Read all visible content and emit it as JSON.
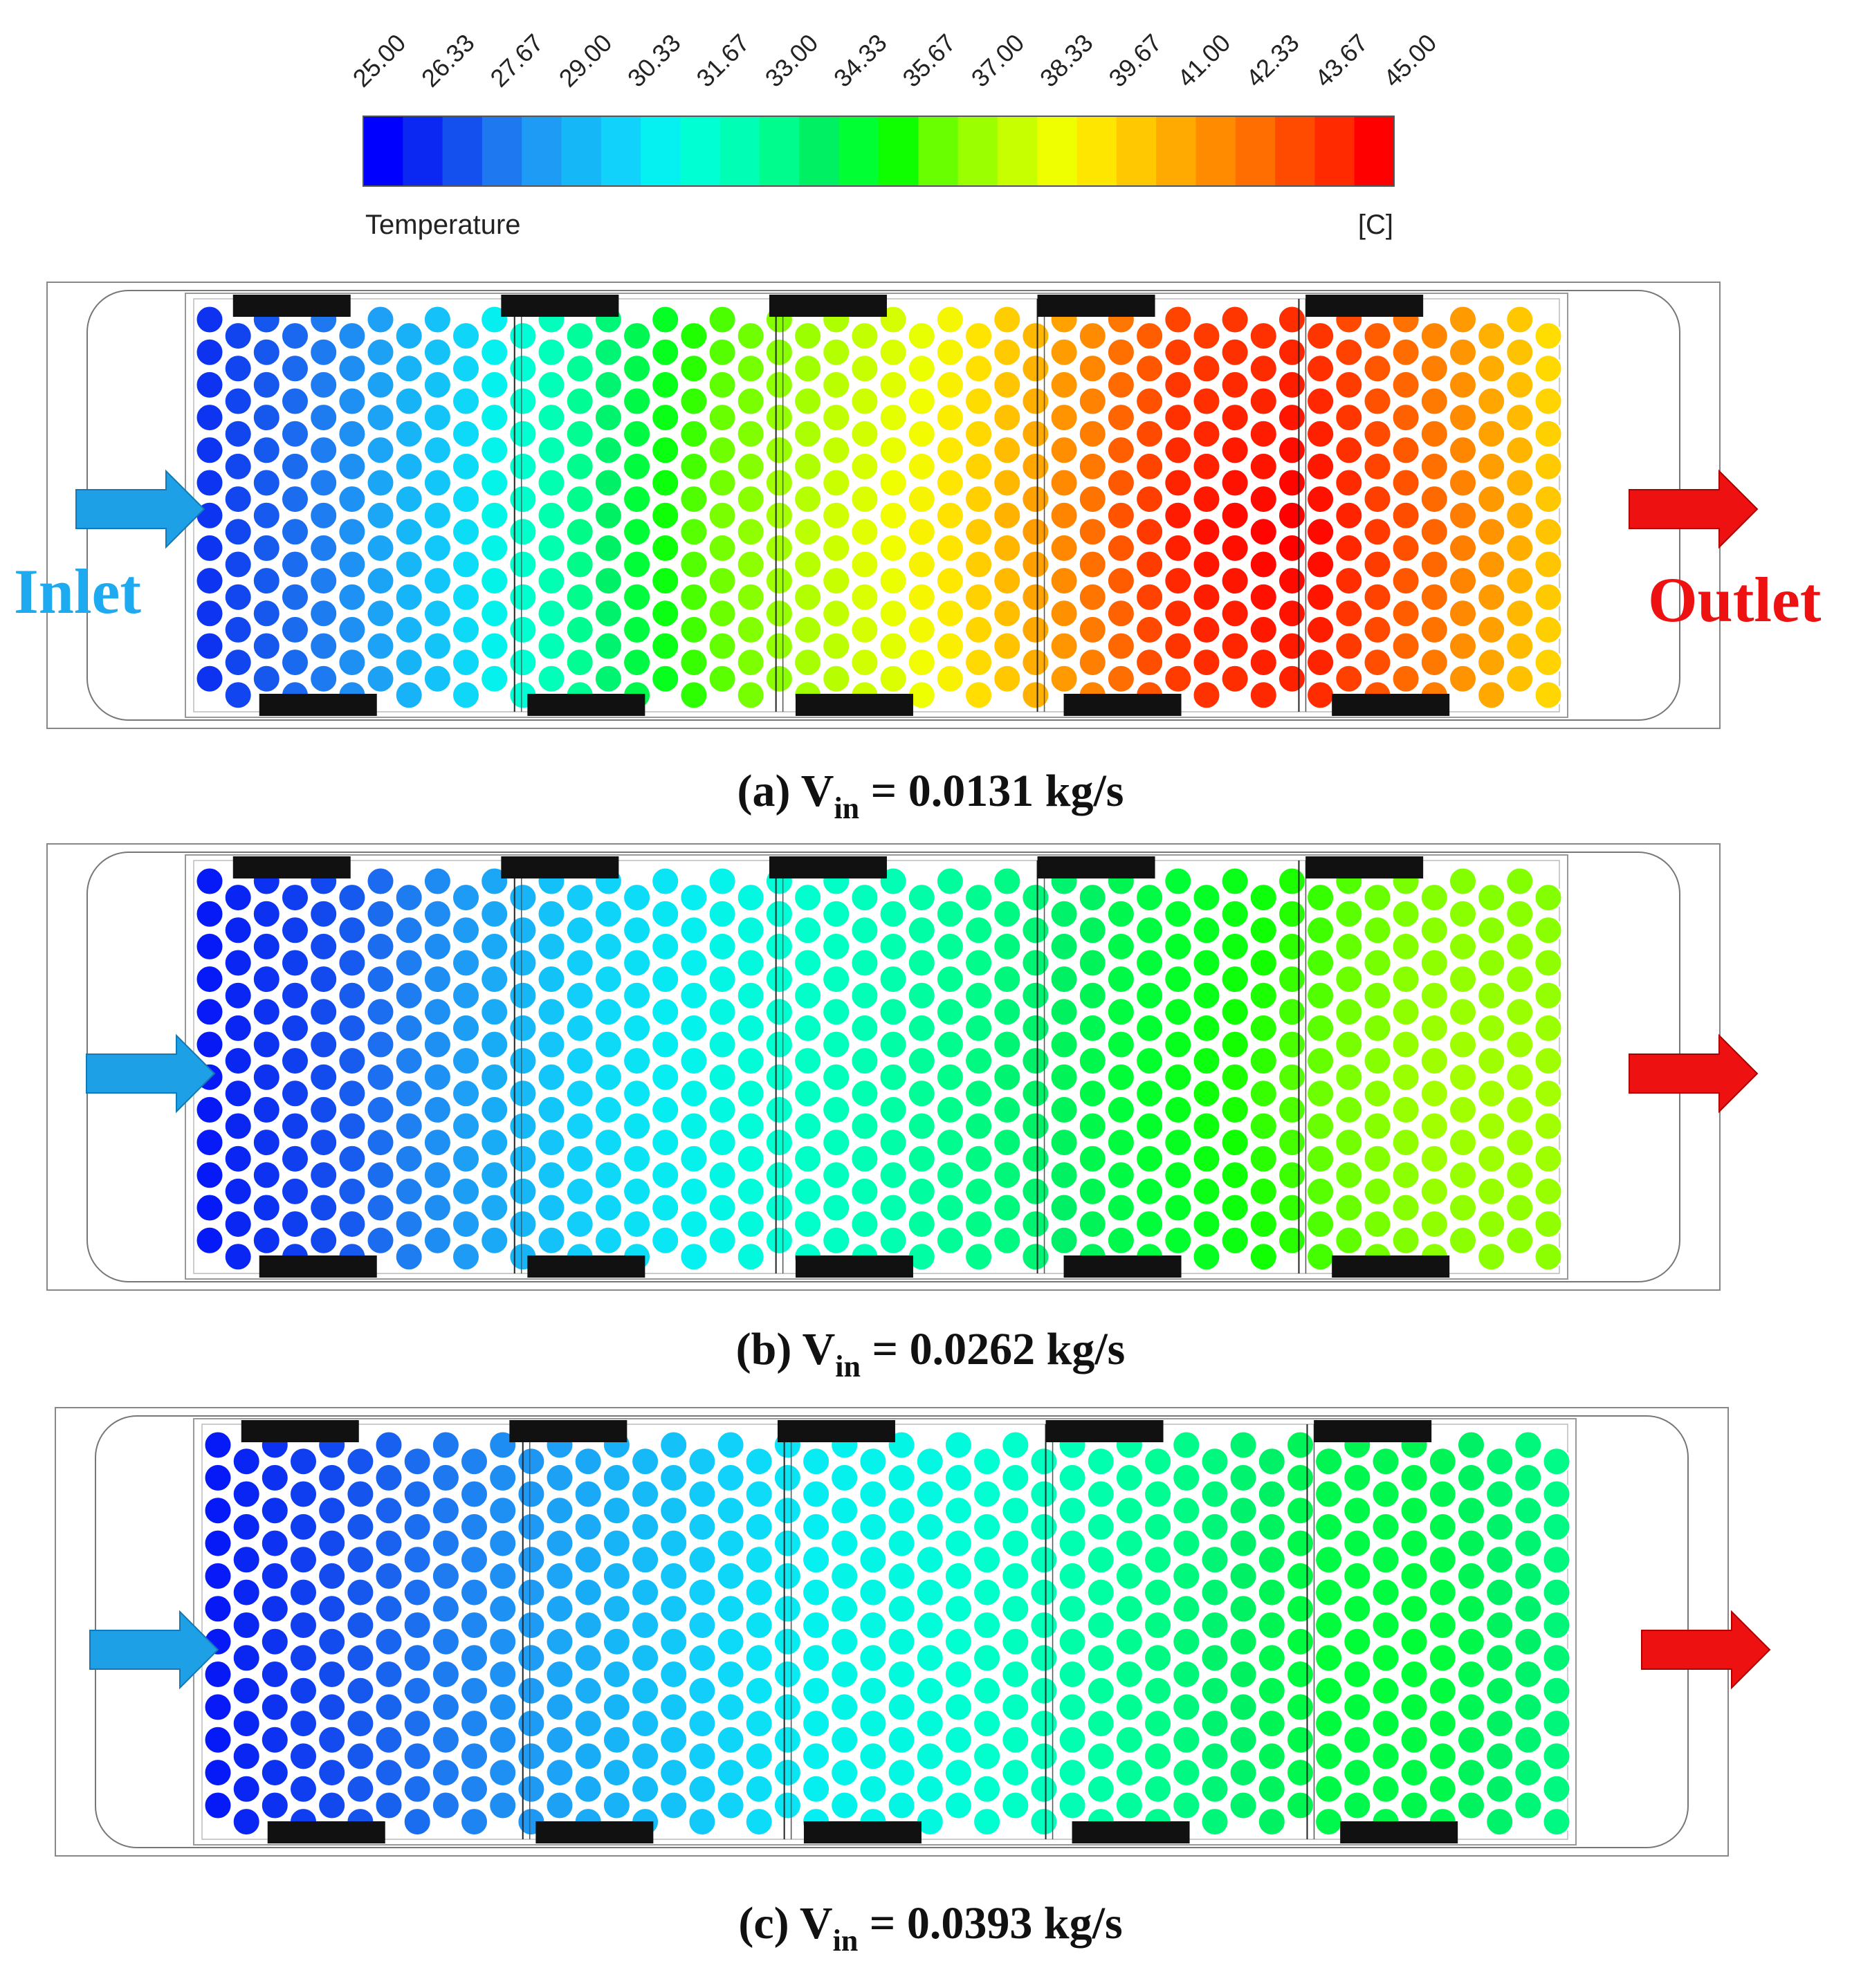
{
  "colorbar": {
    "title": "Temperature",
    "unit": "[C]",
    "ticks": [
      "25.00",
      "26.33",
      "27.67",
      "29.00",
      "30.33",
      "31.67",
      "33.00",
      "34.33",
      "35.67",
      "37.00",
      "38.33",
      "39.67",
      "41.00",
      "42.33",
      "43.67",
      "45.00"
    ],
    "min": 25.0,
    "max": 45.0,
    "colors": [
      "#0000ff",
      "#0a28f2",
      "#1450ee",
      "#1e78f0",
      "#1e9bf5",
      "#16b7f7",
      "#10d2fa",
      "#05f0f0",
      "#00ffd2",
      "#00ffb4",
      "#00fc8c",
      "#00f064",
      "#00ff33",
      "#10ff00",
      "#6aff00",
      "#9bff00",
      "#c8ff00",
      "#f0ff00",
      "#ffe600",
      "#ffc800",
      "#ffaa00",
      "#ff8c00",
      "#ff6e00",
      "#ff4b00",
      "#ff2a00",
      "#ff0000"
    ]
  },
  "labels": {
    "inlet": "Inlet",
    "outlet": "Outlet"
  },
  "colors": {
    "inlet_arrow": "#1ea0e6",
    "outlet_arrow": "#ee1111",
    "inlet_text": "#1eaaf0",
    "outlet_text": "#ee1111",
    "separator": "#111111"
  },
  "panels": [
    {
      "caption_prefix": "(a) V",
      "caption_sub": "in",
      "caption_suffix": " = 0.0131 kg/s",
      "temps_left_to_right": [
        26.0,
        27.5,
        29.5,
        32.5,
        35.5,
        37.0,
        38.5,
        41.0,
        43.5,
        44.0,
        42.0,
        39.5
      ]
    },
    {
      "caption_prefix": "(b) V",
      "caption_sub": "in",
      "caption_suffix": " = 0.0262 kg/s",
      "temps_left_to_right": [
        25.5,
        26.5,
        28.0,
        29.5,
        30.5,
        31.5,
        32.5,
        33.5,
        34.5,
        35.5,
        36.5,
        36.5
      ]
    },
    {
      "caption_prefix": "(c) V",
      "caption_sub": "in",
      "caption_suffix": " = 0.0393 kg/s",
      "temps_left_to_right": [
        25.5,
        26.5,
        27.5,
        28.5,
        29.5,
        30.5,
        31.0,
        32.0,
        33.0,
        34.0,
        34.0,
        33.0
      ]
    }
  ]
}
